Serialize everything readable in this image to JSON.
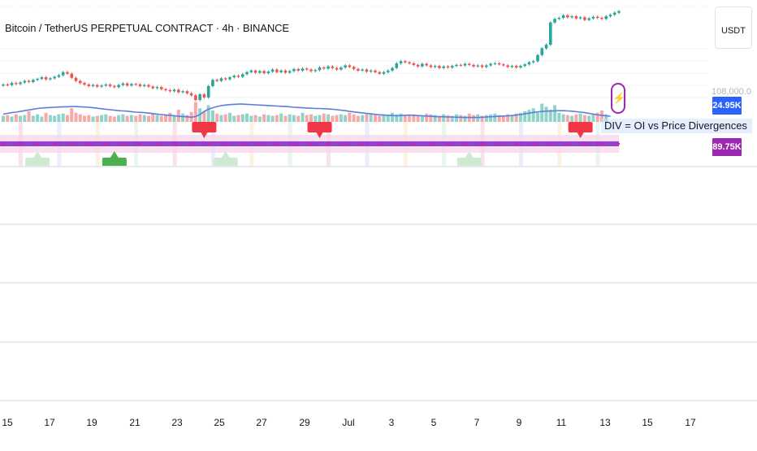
{
  "header": {
    "title": "Bitcoin / TetherUS PERPETUAL CONTRACT · 4h · BINANCE",
    "currency_button": "USDT"
  },
  "price_axis": {
    "hidden_price_label": "108,000.0",
    "oi_badge": "24.95K",
    "volume_badge": "89.75K"
  },
  "indicator": {
    "divergence_label": "DIV = OI vs Price Divergences",
    "flash_icon": "lightning-icon"
  },
  "x_axis": {
    "ticks": [
      "15",
      "17",
      "19",
      "21",
      "23",
      "25",
      "27",
      "29",
      "Jul",
      "3",
      "5",
      "7",
      "9",
      "11",
      "13",
      "15",
      "17"
    ]
  },
  "colors": {
    "up": "#26a69a",
    "down": "#ef5350",
    "oi_line": "#5b7fe0",
    "accent_blue": "#2962ff",
    "accent_purple": "#9c27b0",
    "bear_marker": "#f23645",
    "bull_marker": "#4caf50"
  },
  "chart_data": {
    "type": "candlestick",
    "timeframe": "4h",
    "x_range": [
      "Jun 14",
      "Jul 17"
    ],
    "closes": [
      104.9,
      104.8,
      105.2,
      105.0,
      105.3,
      105.6,
      105.4,
      105.8,
      106.0,
      106.3,
      105.9,
      106.1,
      106.4,
      106.7,
      107.3,
      107.0,
      106.2,
      105.6,
      105.2,
      104.9,
      104.6,
      104.8,
      104.5,
      104.7,
      104.9,
      104.6,
      104.4,
      104.8,
      105.1,
      104.7,
      105.0,
      104.9,
      104.6,
      104.8,
      104.5,
      104.2,
      104.4,
      104.0,
      103.8,
      103.6,
      103.9,
      103.4,
      103.6,
      103.2,
      102.8,
      101.9,
      103.0,
      102.4,
      104.6,
      105.8,
      105.6,
      106.1,
      105.9,
      106.3,
      106.6,
      106.4,
      106.9,
      107.3,
      107.6,
      107.2,
      107.5,
      107.1,
      107.4,
      107.8,
      107.3,
      107.6,
      107.2,
      107.5,
      107.9,
      107.6,
      108.0,
      107.8,
      107.5,
      107.7,
      108.2,
      108.0,
      108.4,
      108.1,
      107.8,
      108.2,
      108.6,
      108.3,
      107.9,
      107.6,
      107.8,
      107.4,
      107.6,
      107.3,
      107.0,
      107.3,
      107.6,
      108.1,
      109.0,
      109.4,
      109.2,
      109.0,
      108.7,
      108.4,
      108.9,
      108.6,
      108.3,
      108.5,
      108.1,
      108.4,
      108.2,
      108.5,
      108.7,
      108.6,
      108.9,
      108.7,
      108.4,
      108.6,
      108.3,
      108.6,
      108.9,
      109.0,
      108.8,
      108.6,
      108.3,
      108.5,
      108.2,
      108.5,
      108.8,
      109.2,
      109.4,
      110.6,
      111.9,
      112.6,
      116.9,
      117.6,
      117.8,
      118.3,
      117.9,
      118.1,
      117.7,
      117.9,
      117.4,
      117.7,
      118.0,
      117.8,
      117.6,
      118.1,
      118.4,
      118.8,
      119.1
    ],
    "volume": [
      8,
      9,
      7,
      10,
      8,
      9,
      14,
      8,
      10,
      7,
      12,
      9,
      8,
      10,
      11,
      9,
      18,
      12,
      10,
      8,
      9,
      7,
      8,
      9,
      10,
      8,
      7,
      9,
      10,
      8,
      9,
      8,
      10,
      9,
      8,
      11,
      9,
      8,
      10,
      12,
      9,
      16,
      11,
      9,
      13,
      26,
      18,
      14,
      22,
      15,
      11,
      9,
      10,
      12,
      8,
      9,
      10,
      11,
      8,
      9,
      7,
      10,
      9,
      8,
      9,
      11,
      8,
      10,
      9,
      8,
      12,
      9,
      10,
      8,
      9,
      11,
      10,
      8,
      9,
      10,
      9,
      12,
      10,
      8,
      9,
      11,
      10,
      9,
      8,
      10,
      9,
      12,
      10,
      11,
      9,
      8,
      10,
      9,
      8,
      11,
      10,
      9,
      8,
      10,
      9,
      8,
      10,
      9,
      8,
      11,
      9,
      10,
      8,
      9,
      10,
      11,
      9,
      8,
      10,
      9,
      11,
      12,
      14,
      16,
      18,
      12,
      24,
      20,
      16,
      22,
      12,
      10,
      9,
      8,
      10,
      11,
      9,
      8,
      10,
      12,
      15,
      10
    ],
    "oi_line": [
      49.2,
      49.5,
      49.8,
      50.0,
      50.3,
      50.6,
      50.9,
      51.2,
      51.5,
      51.7,
      51.8,
      51.9,
      52.0,
      52.1,
      52.2,
      52.2,
      52.3,
      52.3,
      52.2,
      52.1,
      52.0,
      51.8,
      51.6,
      51.4,
      51.2,
      51.0,
      50.8,
      50.6,
      50.5,
      50.4,
      50.2,
      50.0,
      49.9,
      49.8,
      49.6,
      49.4,
      49.2,
      49.0,
      48.8,
      48.7,
      48.5,
      48.3,
      48.2,
      48.1,
      47.9,
      48.2,
      49.0,
      50.3,
      51.2,
      51.8,
      52.3,
      52.7,
      52.9,
      53.1,
      53.2,
      53.3,
      53.3,
      53.2,
      53.1,
      53.0,
      52.9,
      52.8,
      52.7,
      52.6,
      52.5,
      52.4,
      52.3,
      52.2,
      52.0,
      51.9,
      51.8,
      51.7,
      51.6,
      51.5,
      51.5,
      51.4,
      51.3,
      51.2,
      51.0,
      50.8,
      50.6,
      50.3,
      50.1,
      49.9,
      49.7,
      49.5,
      49.3,
      49.1,
      48.9,
      48.8,
      48.7,
      48.6,
      48.5,
      48.6,
      48.7,
      48.8,
      48.7,
      48.6,
      48.5,
      48.4,
      48.3,
      48.2,
      48.1,
      48.1,
      48.0,
      48.0,
      47.9,
      47.9,
      47.8,
      47.8,
      47.8,
      47.8,
      47.9,
      48.0,
      48.1,
      48.2,
      48.3,
      48.4,
      48.5,
      48.6,
      48.8,
      49.0,
      49.3,
      49.6,
      49.9,
      50.1,
      50.3,
      50.4,
      50.5,
      50.5,
      50.6,
      50.6,
      50.5,
      50.4,
      50.2,
      50.0,
      49.8,
      49.5,
      49.2,
      48.9,
      48.7,
      48.5,
      48.3
    ],
    "bearish_divergence_bars": [
      47,
      74,
      135
    ],
    "bullish_divergence_bars": [
      8,
      26,
      52,
      109
    ],
    "x_ticks": [
      "15",
      "17",
      "19",
      "21",
      "23",
      "25",
      "27",
      "29",
      "Jul",
      "3",
      "5",
      "7",
      "9",
      "11",
      "13",
      "15",
      "17"
    ],
    "legend_label": "DIV = OI vs Price Divergences",
    "grid": true
  }
}
